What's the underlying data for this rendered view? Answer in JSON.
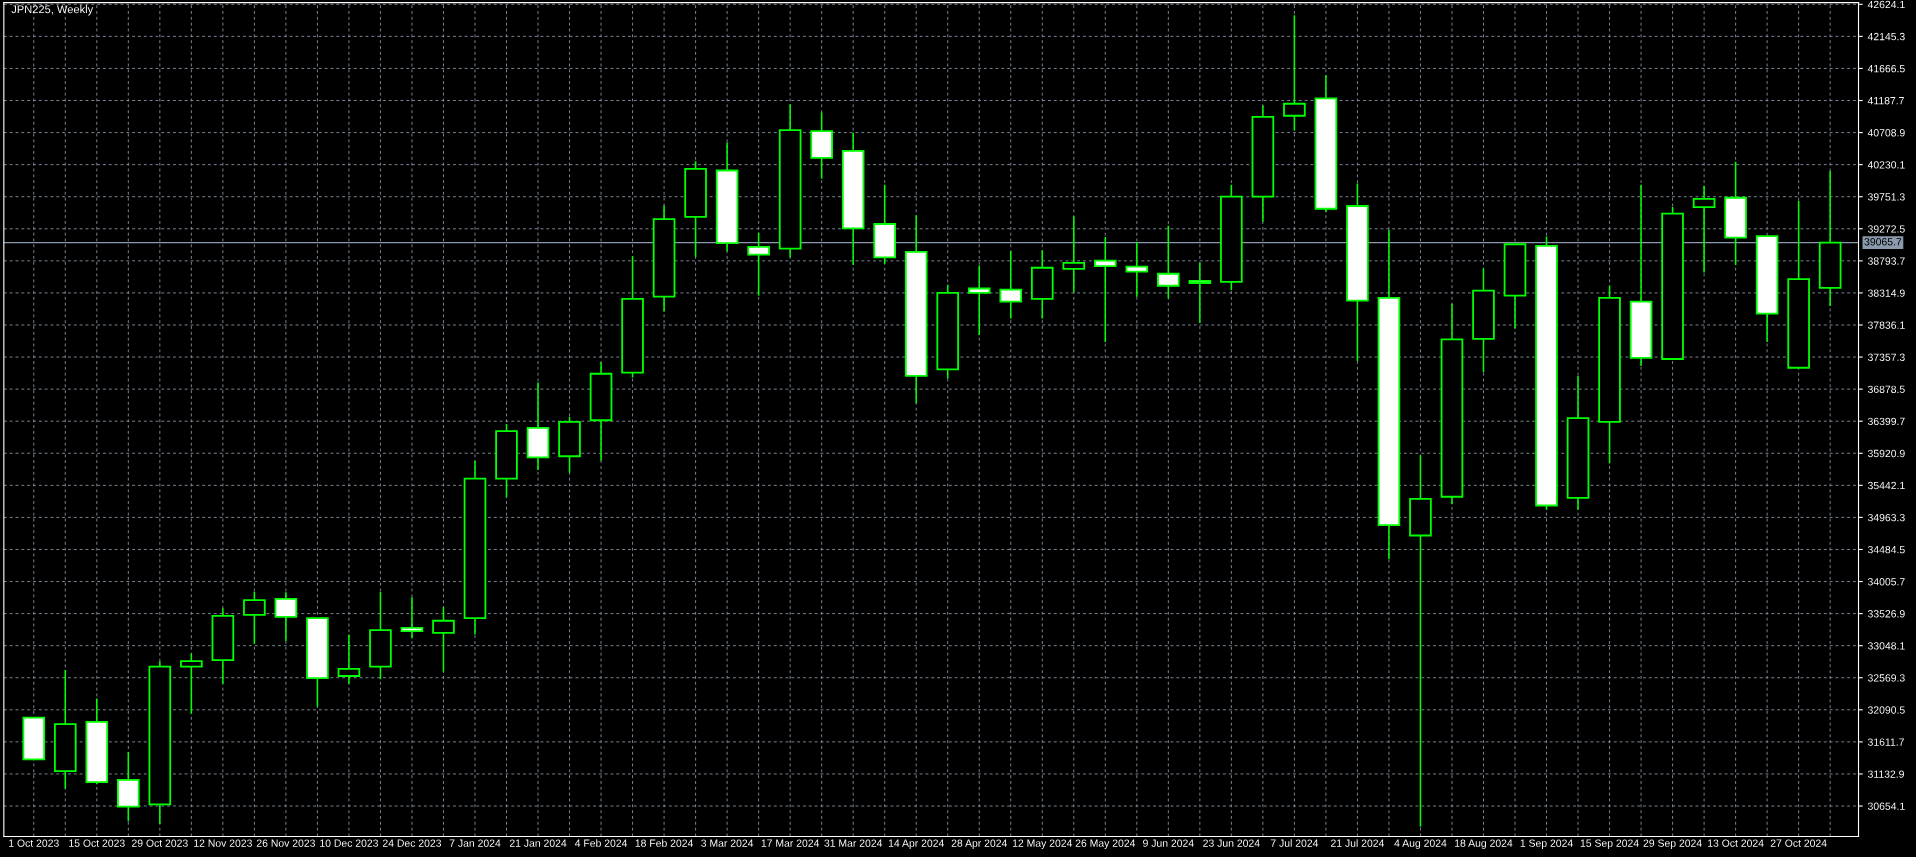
{
  "chart_data": {
    "type": "candlestick",
    "title": "JPN225, Weekly",
    "categories": [
      "1 Oct 2023",
      null,
      "15 Oct 2023",
      null,
      "29 Oct 2023",
      null,
      "12 Nov 2023",
      null,
      "26 Nov 2023",
      null,
      "10 Dec 2023",
      null,
      "24 Dec 2023",
      null,
      "7 Jan 2024",
      null,
      "21 Jan 2024",
      null,
      "4 Feb 2024",
      null,
      "18 Feb 2024",
      null,
      "3 Mar 2024",
      null,
      "17 Mar 2024",
      null,
      "31 Mar 2024",
      null,
      "14 Apr 2024",
      null,
      "28 Apr 2024",
      null,
      "12 May 2024",
      null,
      "26 May 2024",
      null,
      "9 Jun 2024",
      null,
      "23 Jun 2024",
      null,
      "7 Jul 2024",
      null,
      "21 Jul 2024",
      null,
      "4 Aug 2024",
      null,
      "18 Aug 2024",
      null,
      "1 Sep 2024",
      null,
      "15 Sep 2024",
      null,
      "29 Sep 2024",
      null,
      "13 Oct 2024",
      null,
      "27 Oct 2024",
      null
    ],
    "ohlc": [
      [
        31975,
        31975,
        31350,
        31350
      ],
      [
        31176,
        32685,
        30915,
        31877
      ],
      [
        31910,
        32261,
        30980,
        31012
      ],
      [
        31045,
        31461,
        30425,
        30645
      ],
      [
        30678,
        32816,
        30384,
        32734
      ],
      [
        32734,
        32930,
        32033,
        32816
      ],
      [
        32832,
        33607,
        32481,
        33493
      ],
      [
        33509,
        33852,
        33077,
        33729
      ],
      [
        33746,
        33844,
        33118,
        33477
      ],
      [
        33460,
        33460,
        32139,
        32563
      ],
      [
        32595,
        33215,
        32481,
        32702
      ],
      [
        32734,
        33852,
        32547,
        33281
      ],
      [
        33314,
        33771,
        33159,
        33265
      ],
      [
        33240,
        33624,
        32661,
        33420
      ],
      [
        33460,
        35811,
        33215,
        35541
      ],
      [
        35541,
        36357,
        35264,
        36251
      ],
      [
        36300,
        36977,
        35672,
        35860
      ],
      [
        35876,
        36463,
        35631,
        36390
      ],
      [
        36414,
        37279,
        35811,
        37108
      ],
      [
        37124,
        38862,
        37051,
        38226
      ],
      [
        38259,
        39621,
        38038,
        39417
      ],
      [
        39450,
        40282,
        38854,
        40168
      ],
      [
        40143,
        40560,
        38936,
        39058
      ],
      [
        39001,
        39213,
        38275,
        38887
      ],
      [
        38977,
        41131,
        38846,
        40747
      ],
      [
        40731,
        41009,
        40021,
        40331
      ],
      [
        40437,
        40707,
        38732,
        39279
      ],
      [
        39344,
        39931,
        38748,
        38846
      ],
      [
        38928,
        39474,
        36667,
        37075
      ],
      [
        37173,
        38438,
        37035,
        38316
      ],
      [
        38381,
        38724,
        37687,
        38316
      ],
      [
        38365,
        38936,
        37932,
        38185
      ],
      [
        38226,
        38952,
        37932,
        38691
      ],
      [
        38675,
        39458,
        38324,
        38764
      ],
      [
        38797,
        39148,
        37581,
        38715
      ],
      [
        38707,
        39075,
        38259,
        38634
      ],
      [
        38601,
        39319,
        38234,
        38422
      ],
      [
        38495,
        38764,
        37867,
        38463
      ],
      [
        38479,
        39931,
        38357,
        39752
      ],
      [
        39752,
        41115,
        39376,
        40943
      ],
      [
        40960,
        42461,
        40739,
        41139
      ],
      [
        41221,
        41563,
        39523,
        39572
      ],
      [
        39613,
        39948,
        37296,
        38201
      ],
      [
        38242,
        39254,
        34342,
        34848
      ],
      [
        34693,
        35893,
        30344,
        35240
      ],
      [
        35272,
        38152,
        35158,
        37622
      ],
      [
        37630,
        38683,
        37132,
        38348
      ],
      [
        38275,
        39042,
        37785,
        39042
      ],
      [
        39017,
        39156,
        35076,
        35141
      ],
      [
        35256,
        37075,
        35076,
        36447
      ],
      [
        36390,
        38422,
        35770,
        38242
      ],
      [
        38185,
        39931,
        37222,
        37345
      ],
      [
        37328,
        39597,
        37328,
        39499
      ],
      [
        39597,
        39915,
        38618,
        39719
      ],
      [
        39736,
        40274,
        38732,
        39140
      ],
      [
        39164,
        39164,
        37581,
        38006
      ],
      [
        37198,
        39687,
        37198,
        38520
      ],
      [
        38389,
        40135,
        38120,
        39066
      ]
    ],
    "color": "#00ff00",
    "colors": [
      "#ffffff",
      "#000000",
      "#ffffff",
      "#ffffff",
      "#000000",
      "#000000",
      "#000000",
      "#000000",
      "#ffffff",
      "#ffffff",
      "#000000",
      "#000000",
      "#ffffff",
      "#000000",
      "#000000",
      "#000000",
      "#ffffff",
      "#000000",
      "#000000",
      "#000000",
      "#000000",
      "#000000",
      "#ffffff",
      "#ffffff",
      "#000000",
      "#ffffff",
      "#ffffff",
      "#ffffff",
      "#ffffff",
      "#000000",
      "#ffffff",
      "#ffffff",
      "#000000",
      "#000000",
      "#ffffff",
      "#ffffff",
      "#ffffff",
      "#ffffff",
      "#000000",
      "#000000",
      "#000000",
      "#ffffff",
      "#ffffff",
      "#ffffff",
      "#000000",
      "#000000",
      "#000000",
      "#000000",
      "#ffffff",
      "#000000",
      "#000000",
      "#ffffff",
      "#000000",
      "#000000",
      "#ffffff",
      "#ffffff",
      "#000000",
      "#000000"
    ],
    "ylim": [
      30200,
      42650
    ],
    "yticks": [
      30654.1,
      31132.9,
      31611.7,
      32090.5,
      32569.3,
      33048.1,
      33526.9,
      34005.7,
      34484.5,
      34963.3,
      35442.1,
      35920.9,
      36399.7,
      36878.5,
      37357.3,
      37836.1,
      38314.9,
      38793.7,
      39272.5,
      39751.3,
      40230.1,
      40708.9,
      41187.7,
      41666.5,
      42145.3,
      42624.1
    ],
    "ref_lines": [
      {
        "axis": "y",
        "value": 39065.7,
        "label": "39065.7",
        "color": "#8a9aac"
      }
    ],
    "grid": true
  }
}
